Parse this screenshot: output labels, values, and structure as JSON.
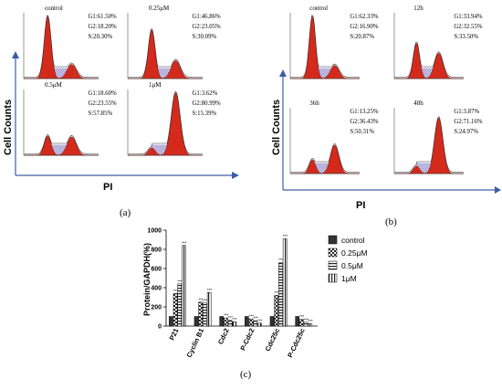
{
  "panel_a": {
    "label": "(a)",
    "y_axis": "Cell Counts",
    "x_axis": "PI",
    "histograms": [
      {
        "title": "control",
        "g1": "G1:61.50%",
        "g2": "G2:18.20%",
        "s": "S:20.30%",
        "g1_frac": 0.615,
        "g2_frac": 0.182
      },
      {
        "title": "0.25μM",
        "g1": "G1:46.86%",
        "g2": "G2:23.05%",
        "s": "S:30.09%",
        "g1_frac": 0.4686,
        "g2_frac": 0.2305
      },
      {
        "title": "0.5μM",
        "g1": "G1:18.60%",
        "g2": "G2:23.55%",
        "s": "S:57.85%",
        "g1_frac": 0.186,
        "g2_frac": 0.2355
      },
      {
        "title": "1μM",
        "g1": "G1:3.62%",
        "g2": "G2:80.99%",
        "s": "S:15.39%",
        "g1_frac": 0.0362,
        "g2_frac": 0.8099
      }
    ]
  },
  "panel_b": {
    "label": "(b)",
    "y_axis": "Cell Counts",
    "x_axis": "PI",
    "histograms": [
      {
        "title": "control",
        "g1": "G1:62.33%",
        "g2": "G2:16.90%",
        "s": "S:20.87%",
        "g1_frac": 0.6233,
        "g2_frac": 0.169
      },
      {
        "title": "12h",
        "g1": "G1:33.94%",
        "g2": "G2:32.55%",
        "s": "S:33.50%",
        "g1_frac": 0.3394,
        "g2_frac": 0.3255
      },
      {
        "title": "36h",
        "g1": "G1:13.25%",
        "g2": "G2:36.43%",
        "s": "S:50.31%",
        "g1_frac": 0.1325,
        "g2_frac": 0.3643
      },
      {
        "title": "48h",
        "g1": "G1:3.87%",
        "g2": "G2:71.16%",
        "s": "S:24.97%",
        "g1_frac": 0.0387,
        "g2_frac": 0.7116
      }
    ]
  },
  "panel_c": {
    "label": "(c)"
  },
  "chart_data": {
    "type": "bar",
    "ylabel": "Protein/GAPDH(%)",
    "ylim": [
      0,
      1000
    ],
    "yticks": [
      "0",
      "200",
      "400",
      "600",
      "800",
      "1000"
    ],
    "categories": [
      "P21",
      "Cyclin B1",
      "Cdc2",
      "P-Cdc2",
      "Cdc25c",
      "P-Cdc25c"
    ],
    "series": [
      {
        "name": "control",
        "values": [
          100,
          100,
          100,
          100,
          100,
          100
        ]
      },
      {
        "name": "0.25μM",
        "values": [
          340,
          250,
          85,
          75,
          320,
          70
        ]
      },
      {
        "name": "0.5μM",
        "values": [
          440,
          240,
          60,
          55,
          660,
          40
        ]
      },
      {
        "name": "1μM",
        "values": [
          840,
          350,
          45,
          30,
          910,
          25
        ]
      }
    ],
    "significance": [
      [
        "",
        "***",
        "***",
        "***"
      ],
      [
        "",
        "***",
        "***",
        "***"
      ],
      [
        "",
        "***",
        "***",
        "***"
      ],
      [
        "",
        "***",
        "***",
        "***"
      ],
      [
        "",
        "***",
        "***",
        "***"
      ],
      [
        "",
        "***",
        "***",
        "***"
      ]
    ],
    "legend": "right"
  }
}
